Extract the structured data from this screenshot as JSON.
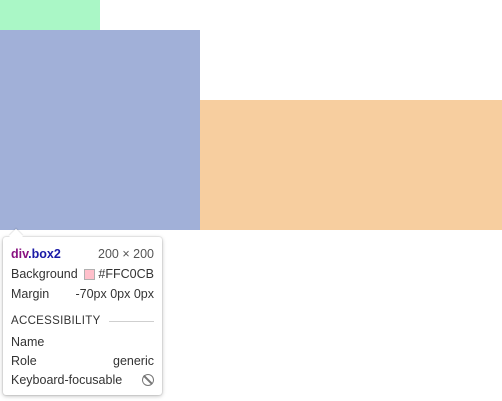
{
  "colors": {
    "green_box": "#aaf7c6",
    "blue_box": "#a1b0d8",
    "orange_box": "#f7ce9f"
  },
  "tooltip": {
    "element_tag": "div",
    "element_class": ".box2",
    "size": "200 × 200",
    "background_label": "Background",
    "background_value": "#FFC0CB",
    "margin_label": "Margin",
    "margin_value": "-70px 0px 0px",
    "accessibility_heading": "ACCESSIBILITY",
    "name_label": "Name",
    "name_value": "",
    "role_label": "Role",
    "role_value": "generic",
    "keyboard_label": "Keyboard-focusable",
    "keyboard_icon": "not-allowed-icon"
  }
}
